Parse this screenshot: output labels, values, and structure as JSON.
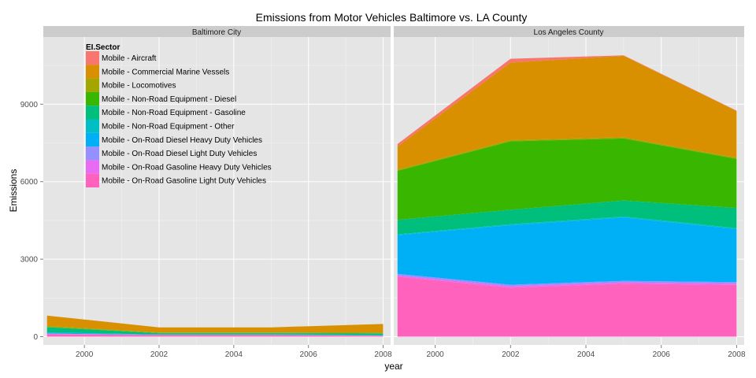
{
  "chart_data": {
    "type": "area",
    "stacked": true,
    "title": "Emissions from Motor Vehicles Baltimore vs. LA County",
    "xlabel": "year",
    "ylabel": "Emissions",
    "x": [
      1999,
      2002,
      2005,
      2008
    ],
    "xticks": [
      "2000",
      "2002",
      "2004",
      "2006",
      "2008"
    ],
    "xlim": [
      1998.9,
      2008.2
    ],
    "ylim": [
      -320,
      11600
    ],
    "yticks": [
      "0",
      "3000",
      "6000",
      "9000"
    ],
    "grid": true,
    "legend_title": "EI.Sector",
    "legend_position": "top-left",
    "series": [
      {
        "name": "Mobile - Aircraft",
        "color": "#F8766D"
      },
      {
        "name": "Mobile - Commercial Marine Vessels",
        "color": "#D89000"
      },
      {
        "name": "Mobile - Locomotives",
        "color": "#A3A500"
      },
      {
        "name": "Mobile - Non-Road Equipment - Diesel",
        "color": "#39B600"
      },
      {
        "name": "Mobile - Non-Road Equipment - Gasoline",
        "color": "#00BF7D"
      },
      {
        "name": "Mobile - Non-Road Equipment - Other",
        "color": "#00BFC4"
      },
      {
        "name": "Mobile - On-Road Diesel Heavy Duty Vehicles",
        "color": "#00B0F6"
      },
      {
        "name": "Mobile - On-Road Diesel Light Duty Vehicles",
        "color": "#9590FF"
      },
      {
        "name": "Mobile - On-Road Gasoline Heavy Duty Vehicles",
        "color": "#E76BF3"
      },
      {
        "name": "Mobile - On-Road Gasoline Light Duty Vehicles",
        "color": "#FF62BC"
      }
    ],
    "panels": [
      {
        "label": "Baltimore City",
        "values": [
          [
            3,
            1,
            1,
            1
          ],
          [
            400,
            200,
            200,
            340
          ],
          [
            40,
            15,
            15,
            20
          ],
          [
            10,
            10,
            10,
            10
          ],
          [
            200,
            50,
            50,
            60
          ],
          [
            5,
            5,
            5,
            5
          ],
          [
            40,
            10,
            10,
            15
          ],
          [
            10,
            5,
            5,
            5
          ],
          [
            20,
            5,
            5,
            5
          ],
          [
            90,
            60,
            60,
            30
          ]
        ]
      },
      {
        "label": "Los Angeles County",
        "values": [
          [
            100,
            150,
            20,
            20
          ],
          [
            900,
            3000,
            3150,
            1800
          ],
          [
            40,
            50,
            50,
            50
          ],
          [
            1900,
            2650,
            2400,
            1900
          ],
          [
            560,
            560,
            620,
            780
          ],
          [
            30,
            40,
            40,
            40
          ],
          [
            1500,
            2300,
            2450,
            2050
          ],
          [
            60,
            60,
            60,
            60
          ],
          [
            50,
            50,
            50,
            50
          ],
          [
            2320,
            1900,
            2050,
            2000
          ]
        ]
      }
    ]
  }
}
